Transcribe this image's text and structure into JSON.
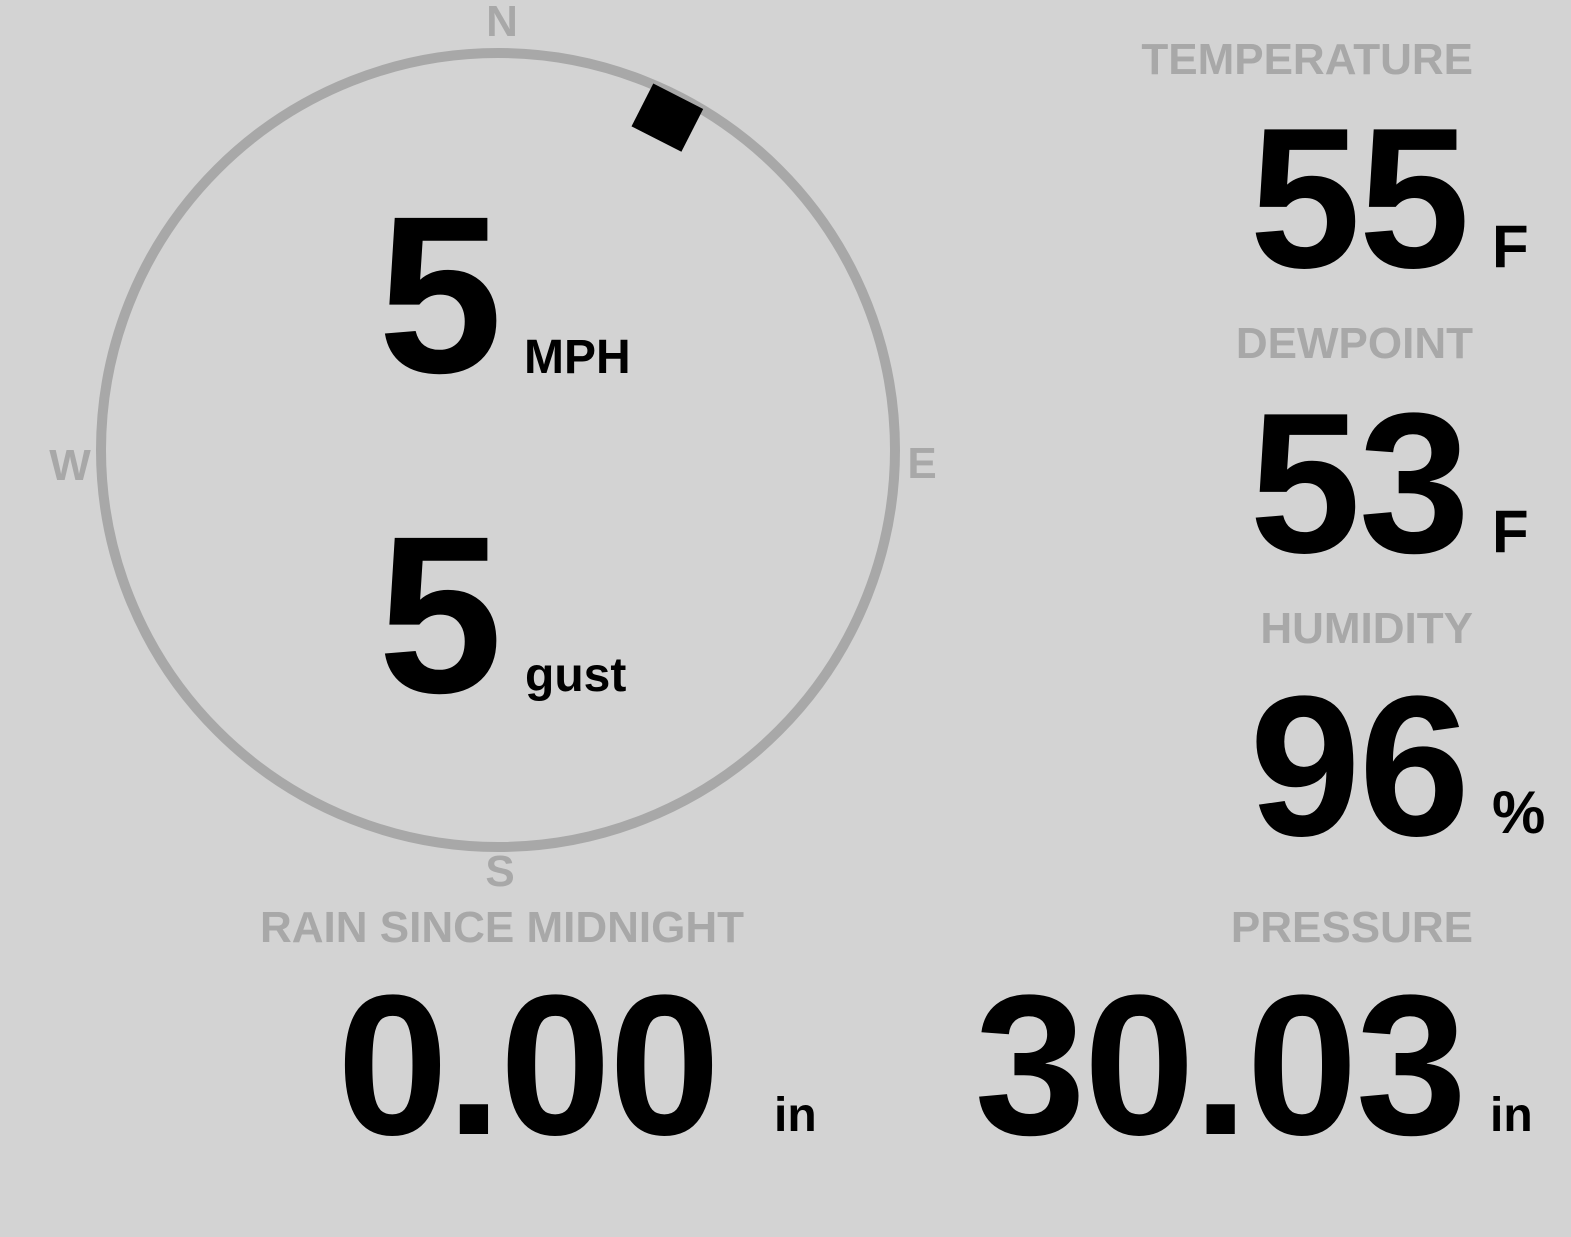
{
  "colors": {
    "background": "#d3d3d3",
    "label": "#a8a8a8",
    "value": "#000000",
    "compass_ring": "#a8a8a8",
    "wind_marker": "#000000"
  },
  "compass": {
    "north": "N",
    "south": "S",
    "east": "E",
    "west": "W",
    "wind_direction_deg": 27
  },
  "wind": {
    "speed": "5",
    "speed_unit": "MPH",
    "gust": "5",
    "gust_label": "gust"
  },
  "temperature": {
    "label": "TEMPERATURE",
    "value": "55",
    "unit": "F"
  },
  "dewpoint": {
    "label": "DEWPOINT",
    "value": "53",
    "unit": "F"
  },
  "humidity": {
    "label": "HUMIDITY",
    "value": "96",
    "unit": "%"
  },
  "rain": {
    "label": "RAIN SINCE MIDNIGHT",
    "value": "0.00",
    "unit": "in"
  },
  "pressure": {
    "label": "PRESSURE",
    "value": "30.03",
    "unit": "in"
  }
}
